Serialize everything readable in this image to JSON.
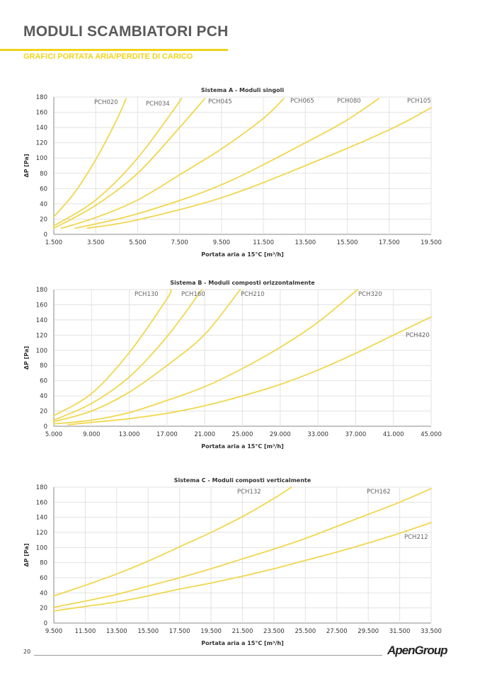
{
  "header": {
    "title": "MODULI SCAMBIATORI PCH",
    "subtitle": "GRAFICI PORTATA ARIA/PERDITE DI CARICO"
  },
  "colors": {
    "accent": "#f0d31a",
    "curve": "#f0d74e",
    "title": "#5a5a5a"
  },
  "footer": {
    "page_number": "20",
    "logo": "ApenGroup"
  },
  "chart_data": [
    {
      "type": "line",
      "title": "Sistema A - Moduli singoli",
      "xlabel": "Portata aria a 15°C [m³/h]",
      "ylabel": "ΔP [Pa]",
      "xlim": [
        1500,
        19500
      ],
      "ylim": [
        0,
        180
      ],
      "grid": true,
      "xticks": [
        "1.500",
        "3.500",
        "5.500",
        "7.500",
        "9.500",
        "11.500",
        "13.500",
        "15.500",
        "17.500",
        "19.500"
      ],
      "yticks": [
        "0",
        "20",
        "40",
        "60",
        "80",
        "100",
        "120",
        "140",
        "160",
        "180"
      ],
      "series": [
        {
          "name": "PCH020",
          "points": [
            [
              1500,
              23
            ],
            [
              2500,
              55
            ],
            [
              3500,
              98
            ],
            [
              4500,
              150
            ],
            [
              4950,
              178
            ]
          ]
        },
        {
          "name": "PCH034",
          "points": [
            [
              1500,
              11
            ],
            [
              3500,
              45
            ],
            [
              5500,
              100
            ],
            [
              7600,
              178
            ]
          ]
        },
        {
          "name": "PCH045",
          "points": [
            [
              1500,
              8
            ],
            [
              3500,
              38
            ],
            [
              5500,
              80
            ],
            [
              7500,
              140
            ],
            [
              8700,
              178
            ]
          ]
        },
        {
          "name": "PCH065",
          "points": [
            [
              1860,
              8
            ],
            [
              3500,
              22
            ],
            [
              5500,
              45
            ],
            [
              7500,
              78
            ],
            [
              9500,
              112
            ],
            [
              11500,
              152
            ],
            [
              12470,
              178
            ]
          ]
        },
        {
          "name": "PCH080",
          "points": [
            [
              2520,
              8
            ],
            [
              5500,
              27
            ],
            [
              9500,
              65
            ],
            [
              13500,
              120
            ],
            [
              15500,
              150
            ],
            [
              17000,
              178
            ]
          ]
        },
        {
          "name": "PCH105",
          "points": [
            [
              3100,
              8
            ],
            [
              5500,
              19
            ],
            [
              9500,
              48
            ],
            [
              13500,
              90
            ],
            [
              17500,
              137
            ],
            [
              19500,
              166
            ]
          ]
        }
      ]
    },
    {
      "type": "line",
      "title": "Sistema B - Moduli composti orizzontalmente",
      "xlabel": "Portata aria a 15°C [m³/h]",
      "ylabel": "ΔP [Pa]",
      "xlim": [
        5000,
        45000
      ],
      "ylim": [
        0,
        180
      ],
      "grid": true,
      "xticks": [
        "5.000",
        "9.000",
        "13.000",
        "17.000",
        "21.000",
        "25.000",
        "29.000",
        "33.000",
        "37.000",
        "41.000",
        "45.000"
      ],
      "yticks": [
        "0",
        "20",
        "40",
        "60",
        "80",
        "100",
        "120",
        "140",
        "160",
        "180"
      ],
      "series": [
        {
          "name": "PCH130",
          "points": [
            [
              5000,
              14
            ],
            [
              9000,
              43
            ],
            [
              13000,
              97
            ],
            [
              17000,
              168
            ],
            [
              17370,
              180
            ]
          ]
        },
        {
          "name": "PCH160",
          "points": [
            [
              5000,
              8
            ],
            [
              9000,
              30
            ],
            [
              13000,
              65
            ],
            [
              17000,
              118
            ],
            [
              20700,
              180
            ]
          ]
        },
        {
          "name": "PCH210",
          "points": [
            [
              5000,
              6
            ],
            [
              9000,
              20
            ],
            [
              13000,
              45
            ],
            [
              17000,
              80
            ],
            [
              21000,
              121
            ],
            [
              24760,
              180
            ]
          ]
        },
        {
          "name": "PCH320",
          "points": [
            [
              5000,
              3
            ],
            [
              9000,
              8
            ],
            [
              13000,
              18
            ],
            [
              17000,
              34
            ],
            [
              21000,
              52
            ],
            [
              25000,
              76
            ],
            [
              29000,
              104
            ],
            [
              33000,
              137
            ],
            [
              37200,
              180
            ]
          ]
        },
        {
          "name": "PCH420",
          "points": [
            [
              6500,
              2
            ],
            [
              9000,
              5
            ],
            [
              13000,
              10
            ],
            [
              17000,
              17
            ],
            [
              21000,
              27
            ],
            [
              25000,
              40
            ],
            [
              29000,
              55
            ],
            [
              33000,
              74
            ],
            [
              37000,
              96
            ],
            [
              41000,
              120
            ],
            [
              45000,
              144
            ]
          ]
        }
      ]
    },
    {
      "type": "line",
      "title": "Sistema C - Moduli composti verticalmente",
      "xlabel": "Portata aria a 15°C [m³/h]",
      "ylabel": "ΔP [Pa]",
      "xlim": [
        9500,
        33500
      ],
      "ylim": [
        0,
        180
      ],
      "grid": true,
      "xticks": [
        "9.500",
        "11.500",
        "13.500",
        "15.500",
        "17.500",
        "19.500",
        "21.500",
        "23.500",
        "25.500",
        "27.500",
        "29.500",
        "31.500",
        "33.500"
      ],
      "yticks": [
        "0",
        "20",
        "40",
        "60",
        "80",
        "100",
        "120",
        "140",
        "160",
        "180"
      ],
      "series": [
        {
          "name": "PCH132",
          "points": [
            [
              9500,
              36
            ],
            [
              11500,
              50
            ],
            [
              13500,
              65
            ],
            [
              15500,
              82
            ],
            [
              17500,
              101
            ],
            [
              19500,
              120
            ],
            [
              21500,
              141
            ],
            [
              23500,
              165
            ],
            [
              24620,
              180
            ]
          ]
        },
        {
          "name": "PCH162",
          "points": [
            [
              9500,
              21
            ],
            [
              11500,
              29
            ],
            [
              13500,
              38
            ],
            [
              15500,
              49
            ],
            [
              17500,
              60
            ],
            [
              19500,
              72
            ],
            [
              21500,
              85
            ],
            [
              23500,
              98
            ],
            [
              25500,
              112
            ],
            [
              27500,
              128
            ],
            [
              29500,
              144
            ],
            [
              31500,
              160
            ],
            [
              33500,
              178
            ]
          ]
        },
        {
          "name": "PCH212",
          "points": [
            [
              9500,
              16
            ],
            [
              11500,
              22
            ],
            [
              13500,
              28
            ],
            [
              15500,
              36
            ],
            [
              17500,
              45
            ],
            [
              19500,
              53
            ],
            [
              21500,
              62
            ],
            [
              23500,
              72
            ],
            [
              25500,
              83
            ],
            [
              27500,
              94
            ],
            [
              29500,
              106
            ],
            [
              31500,
              119
            ],
            [
              33500,
              133
            ]
          ]
        }
      ]
    }
  ]
}
